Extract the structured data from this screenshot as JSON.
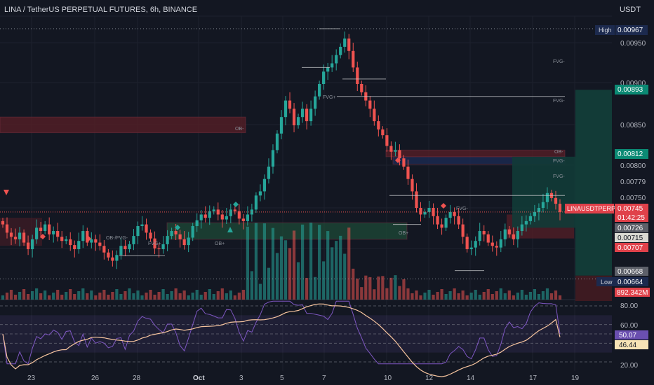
{
  "header": {
    "title": "LINA / TetherUS PERPETUAL FUTURES, 6h, BINANCE",
    "currency": "USDT"
  },
  "colors": {
    "background": "#131722",
    "up": "#26a69a",
    "down": "#ef5350",
    "rsi_line": "#7e57c2",
    "rsi_ma": "#f7c59f",
    "ob_bear_zone": "#5a1f27",
    "ob_bull_zone": "#1e4a37",
    "fvg_zone": "#1b2a52",
    "position_target": "#123b37",
    "position_stop": "#3d1a21"
  },
  "price_axis": {
    "ticks": [
      "0.00950",
      "0.00900",
      "0.00850",
      "0.00800",
      "0.00779",
      "0.00750"
    ],
    "badges": {
      "high_label": "High",
      "high": "0.00967",
      "target": "0.00893",
      "entry": "0.00812",
      "symbol": "LINAUSDTPERP",
      "last": "0.00745",
      "countdown": "01:42:25",
      "level_a": "0.00726",
      "level_b": "0.00715",
      "level_c": "0.00707",
      "level_d": "0.00668",
      "low_label": "Low",
      "low": "0.00664",
      "volume": "892.342M"
    }
  },
  "rsi_axis": {
    "ticks": [
      "80.00",
      "60.00",
      "20.00"
    ],
    "rsi_value": "50.07",
    "rsi_ma_value": "46.44"
  },
  "time_axis": {
    "labels": [
      "23",
      "26",
      "28",
      "Oct",
      "3",
      "5",
      "7",
      "10",
      "12",
      "14",
      "17",
      "19"
    ]
  },
  "annotations": {
    "ob_minus": "OB-",
    "ob_plus": "OB+",
    "fvg_minus": "FVG-",
    "fvg_plus": "FVG+",
    "ob_slash_fvg_minus": "OB-/FVG-",
    "fvg_plus_short": "FVG+"
  },
  "chart_data": {
    "type": "candlestick",
    "title": "LINA / TetherUS PERPETUAL FUTURES, 6h, BINANCE",
    "ylim": [
      0.0064,
      0.0099
    ],
    "y_unit": "USDT",
    "x_labels": [
      "23",
      "26",
      "28",
      "Oct",
      "3",
      "5",
      "7",
      "10",
      "12",
      "14",
      "17",
      "19"
    ],
    "high": 0.00967,
    "low": 0.00664,
    "last": 0.00745,
    "close_path": [
      0.0073,
      0.0072,
      0.00715,
      0.00712,
      0.0072,
      0.00708,
      0.007,
      0.00712,
      0.00726,
      0.00722,
      0.0073,
      0.00718,
      0.00722,
      0.00715,
      0.0071,
      0.00712,
      0.00705,
      0.007,
      0.0071,
      0.00722,
      0.00708,
      0.00712,
      0.00708,
      0.00704,
      0.00696,
      0.0069,
      0.00686,
      0.00693,
      0.00704,
      0.007,
      0.00706,
      0.00716,
      0.00728,
      0.0073,
      0.0072,
      0.00713,
      0.00701,
      0.007,
      0.00706,
      0.00716,
      0.00722,
      0.00718,
      0.00712,
      0.00705,
      0.00714,
      0.00728,
      0.00735,
      0.00742,
      0.00738,
      0.00746,
      0.00748,
      0.00742,
      0.00736,
      0.0074,
      0.00748,
      0.00746,
      0.00737,
      0.00734,
      0.00742,
      0.00748,
      0.00765,
      0.0077,
      0.00785,
      0.008,
      0.0082,
      0.0084,
      0.0086,
      0.0088,
      0.0087,
      0.0085,
      0.0086,
      0.0087,
      0.00855,
      0.0087,
      0.00885,
      0.009,
      0.00915,
      0.0092,
      0.00925,
      0.00935,
      0.00945,
      0.00955,
      0.0094,
      0.0092,
      0.009,
      0.0089,
      0.0088,
      0.0087,
      0.00855,
      0.00845,
      0.00838,
      0.00825,
      0.00818,
      0.0082,
      0.0081,
      0.008,
      0.00785,
      0.0077,
      0.0075,
      0.00742,
      0.00745,
      0.0075,
      0.0074,
      0.0073,
      0.00726,
      0.00738,
      0.00745,
      0.0074,
      0.0073,
      0.00715,
      0.007,
      0.00702,
      0.0071,
      0.00722,
      0.00718,
      0.00708,
      0.00704,
      0.00702,
      0.00712,
      0.00724,
      0.00718,
      0.00712,
      0.00722,
      0.0073,
      0.00734,
      0.0074,
      0.00745,
      0.0075,
      0.00757,
      0.00768,
      0.00762,
      0.00755,
      0.00745
    ],
    "volume_unit": "M",
    "volume_last": 892.342,
    "rsi": {
      "period_value": 50.07,
      "ma_value": 46.44,
      "bands": [
        80,
        60,
        20
      ]
    },
    "zones": [
      {
        "label": "OB-",
        "kind": "bearish order block",
        "y_range": [
          0.00841,
          0.0086
        ]
      },
      {
        "label": "OB+",
        "kind": "bullish order block",
        "y_range": [
          0.00712,
          0.00732
        ]
      },
      {
        "label": "FVG-",
        "kind": "bearish fair value gap",
        "y_range": [
          0.00803,
          0.00812
        ]
      },
      {
        "label": "OB-",
        "kind": "bearish order block",
        "y_range": [
          0.00812,
          0.0082
        ]
      }
    ],
    "position": {
      "entry": 0.00812,
      "target": 0.00893,
      "stop": 0.00668
    }
  }
}
